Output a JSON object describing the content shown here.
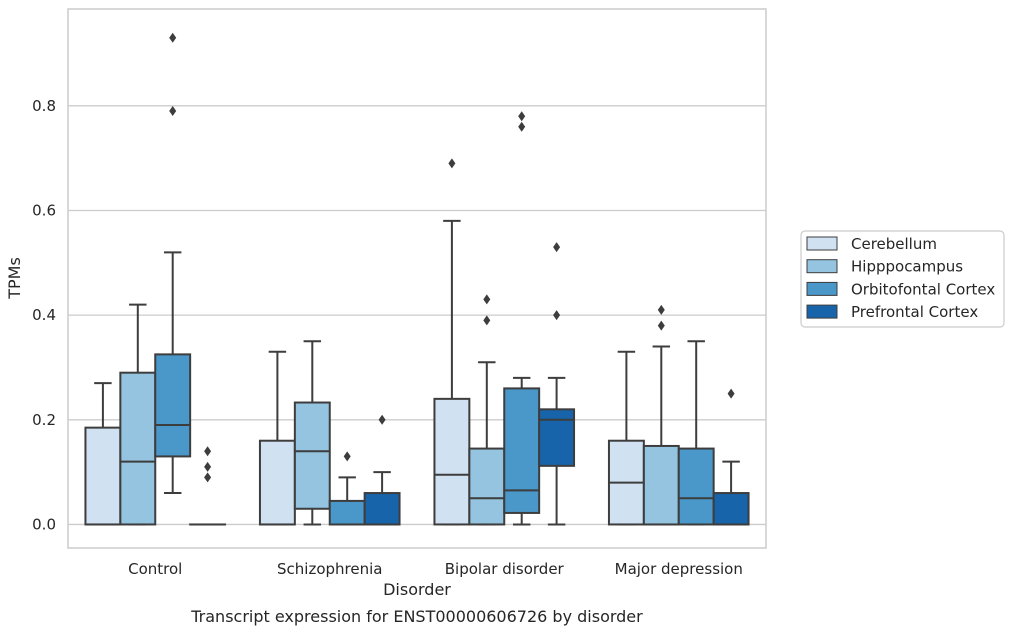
{
  "caption": "Transcript expression for ENST00000606726 by disorder",
  "chart_data": {
    "type": "box",
    "xlabel": "Disorder",
    "ylabel": "TPMs",
    "ylim": [
      -0.045,
      0.985
    ],
    "yticks": [
      0.0,
      0.2,
      0.4,
      0.6,
      0.8
    ],
    "ytick_labels": [
      "0.0",
      "0.2",
      "0.4",
      "0.6",
      "0.8"
    ],
    "grid": "horizontal",
    "legend_position": "right",
    "categories": [
      "Control",
      "Schizophrenia",
      "Bipolar disorder",
      "Major depression"
    ],
    "series": [
      {
        "name": "Cerebellum",
        "color": "#d0e1f2",
        "boxes": [
          {
            "whislo": 0.0,
            "q1": 0.0,
            "med": 0.0,
            "q3": 0.185,
            "whishi": 0.27,
            "fliers": []
          },
          {
            "whislo": 0.0,
            "q1": 0.0,
            "med": 0.0,
            "q3": 0.16,
            "whishi": 0.33,
            "fliers": []
          },
          {
            "whislo": 0.0,
            "q1": 0.0,
            "med": 0.095,
            "q3": 0.24,
            "whishi": 0.58,
            "fliers": [
              0.69
            ]
          },
          {
            "whislo": 0.0,
            "q1": 0.0,
            "med": 0.08,
            "q3": 0.16,
            "whishi": 0.33,
            "fliers": []
          }
        ]
      },
      {
        "name": "Hipppocampus",
        "color": "#94c4df",
        "boxes": [
          {
            "whislo": 0.0,
            "q1": 0.0,
            "med": 0.12,
            "q3": 0.29,
            "whishi": 0.42,
            "fliers": []
          },
          {
            "whislo": 0.0,
            "q1": 0.03,
            "med": 0.14,
            "q3": 0.233,
            "whishi": 0.35,
            "fliers": []
          },
          {
            "whislo": 0.0,
            "q1": 0.0,
            "med": 0.05,
            "q3": 0.145,
            "whishi": 0.31,
            "fliers": [
              0.39,
              0.43
            ]
          },
          {
            "whislo": 0.0,
            "q1": 0.0,
            "med": 0.0,
            "q3": 0.15,
            "whishi": 0.34,
            "fliers": [
              0.38,
              0.41
            ]
          }
        ]
      },
      {
        "name": "Orbitofontal Cortex",
        "color": "#4a98c9",
        "boxes": [
          {
            "whislo": 0.06,
            "q1": 0.13,
            "med": 0.19,
            "q3": 0.325,
            "whishi": 0.52,
            "fliers": [
              0.79,
              0.93
            ]
          },
          {
            "whislo": 0.0,
            "q1": 0.0,
            "med": 0.0,
            "q3": 0.045,
            "whishi": 0.09,
            "fliers": [
              0.13
            ]
          },
          {
            "whislo": 0.0,
            "q1": 0.022,
            "med": 0.065,
            "q3": 0.26,
            "whishi": 0.28,
            "fliers": [
              0.76,
              0.78
            ]
          },
          {
            "whislo": 0.0,
            "q1": 0.0,
            "med": 0.05,
            "q3": 0.145,
            "whishi": 0.35,
            "fliers": []
          }
        ]
      },
      {
        "name": "Prefrontal Cortex",
        "color": "#1764ab",
        "boxes": [
          {
            "whislo": 0.0,
            "q1": 0.0,
            "med": 0.0,
            "q3": 0.0,
            "whishi": 0.0,
            "fliers": [
              0.09,
              0.11,
              0.14
            ]
          },
          {
            "whislo": 0.0,
            "q1": 0.0,
            "med": 0.0,
            "q3": 0.06,
            "whishi": 0.1,
            "fliers": [
              0.2
            ]
          },
          {
            "whislo": 0.0,
            "q1": 0.112,
            "med": 0.2,
            "q3": 0.22,
            "whishi": 0.28,
            "fliers": [
              0.4,
              0.53
            ]
          },
          {
            "whislo": 0.0,
            "q1": 0.0,
            "med": 0.0,
            "q3": 0.06,
            "whishi": 0.12,
            "fliers": [
              0.25
            ]
          }
        ]
      }
    ]
  }
}
